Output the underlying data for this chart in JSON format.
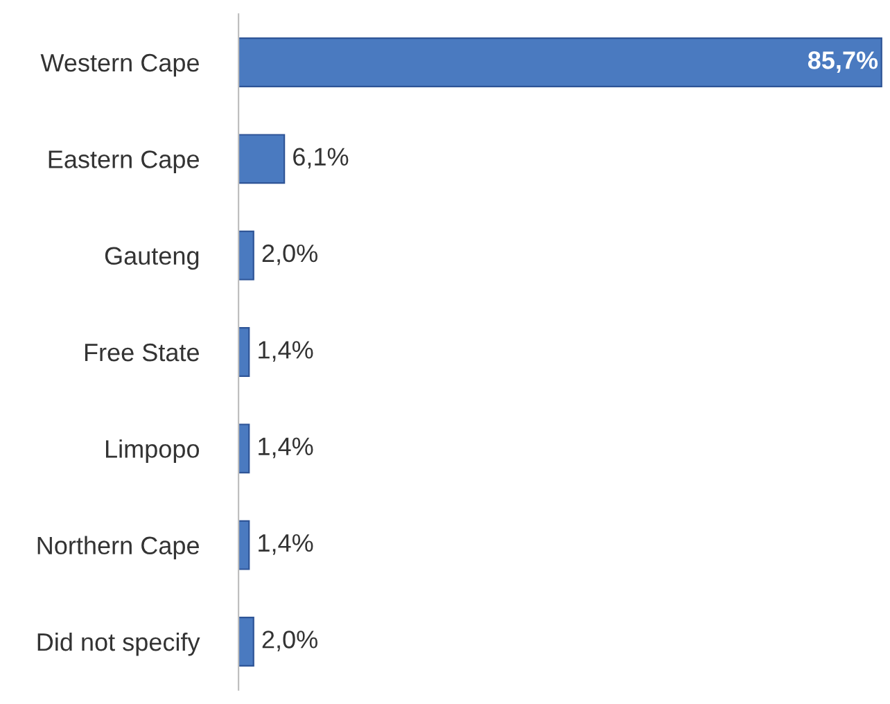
{
  "chart_data": {
    "type": "bar",
    "orientation": "horizontal",
    "categories": [
      "Western Cape",
      "Eastern Cape",
      "Gauteng",
      "Free State",
      "Limpopo",
      "Northern Cape",
      "Did not specify"
    ],
    "values": [
      85.7,
      6.1,
      2.0,
      1.4,
      1.4,
      1.4,
      2.0
    ],
    "value_labels": [
      "85,7%",
      "6,1%",
      "2,0%",
      "1,4%",
      "1,4%",
      "1,4%",
      "2,0%"
    ],
    "color": "#4a7ac0",
    "xlim": [
      0,
      86
    ],
    "tick_labels": "y",
    "grid": false,
    "legend": false
  }
}
